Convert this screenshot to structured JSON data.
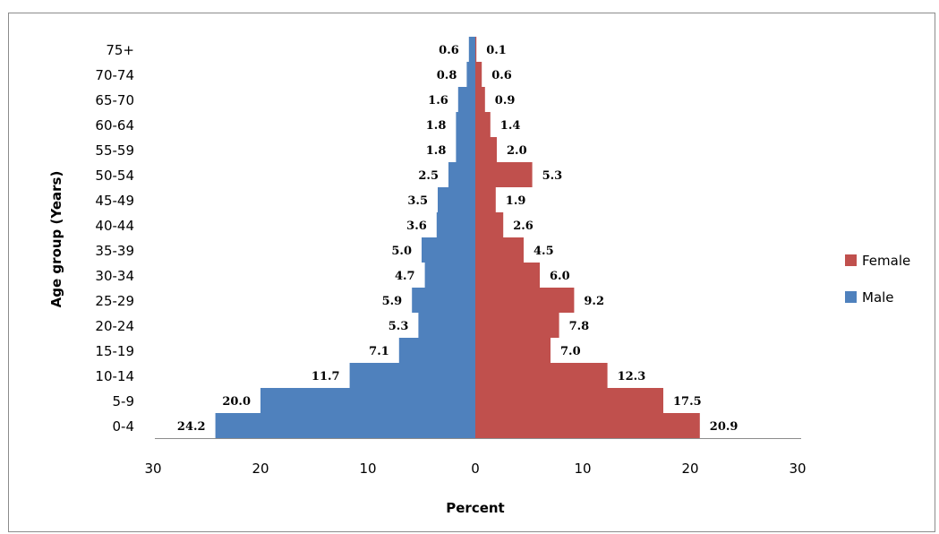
{
  "chart_data": {
    "type": "bar",
    "orientation": "horizontal",
    "layout": "population-pyramid",
    "categories": [
      "0-4",
      "5-9",
      "10-14",
      "15-19",
      "20-24",
      "25-29",
      "30-34",
      "35-39",
      "40-44",
      "45-49",
      "50-54",
      "55-59",
      "60-64",
      "65-70",
      "70-74",
      "75+"
    ],
    "series": [
      {
        "name": "Male",
        "color": "#4f81bd",
        "direction": "left",
        "values": [
          24.2,
          20.0,
          11.7,
          7.1,
          5.3,
          5.9,
          4.7,
          5.0,
          3.6,
          3.5,
          2.5,
          1.8,
          1.8,
          1.6,
          0.8,
          0.6
        ],
        "labels": [
          "24.2",
          "20.0",
          "11.7",
          "7.1",
          "5.3",
          "5.9",
          "4.7",
          "5.0",
          "3.6",
          "3.5",
          "2.5",
          "1.8",
          "1.8",
          "1.6",
          "0.8",
          "0.6"
        ]
      },
      {
        "name": "Female",
        "color": "#c0504d",
        "direction": "right",
        "values": [
          20.9,
          17.5,
          12.3,
          7.0,
          7.8,
          9.2,
          6.0,
          4.5,
          2.6,
          1.9,
          5.3,
          2.0,
          1.4,
          0.9,
          0.6,
          0.1
        ],
        "labels": [
          "20.9",
          "17.5",
          "12.3",
          "7.0",
          "7.8",
          "9.2",
          "6.0",
          "4.5",
          "2.6",
          "1.9",
          "5.3",
          "2.0",
          "1.4",
          "0.9",
          "0.6",
          "0.1"
        ]
      }
    ],
    "xlabel": "Percent",
    "ylabel": "Age group (Years)",
    "xlim": [
      -30,
      30
    ],
    "xticks": [
      -30,
      -20,
      -10,
      0,
      10,
      20,
      30
    ],
    "xtick_labels": [
      "30",
      "20",
      "10",
      "0",
      "10",
      "20",
      "30"
    ],
    "grid": false,
    "legend": {
      "placement": "right",
      "entries": [
        "Female",
        "Male"
      ]
    }
  }
}
